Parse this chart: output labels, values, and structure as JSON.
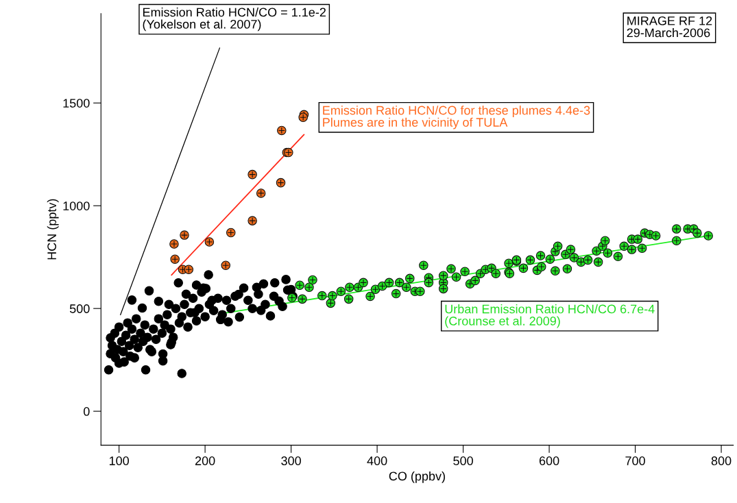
{
  "chart_data": {
    "type": "scatter",
    "xlabel": "CO (ppbv)",
    "ylabel": "HCN (pptv)",
    "xlim": [
      79,
      814
    ],
    "ylim": [
      -165,
      1935
    ],
    "xticks": [
      100,
      200,
      300,
      400,
      500,
      600,
      700,
      800
    ],
    "yticks": [
      0,
      500,
      1000,
      1500
    ],
    "grid": false,
    "annotations": [
      "Emission Ratio HCN/CO = 1.1e-2\n(Yokelson et al. 2007)",
      "MIRAGE RF 12\n29-March-2006",
      "Emission Ratio HCN/CO for these plumes 4.4e-3\nPlumes are in the vicinity of TULA",
      "Urban Emission Ratio HCN/CO 6.7e-4\n(Crounse et al. 2009)"
    ],
    "series": [
      {
        "marker": "circle",
        "color": "#000000",
        "x": [
          88,
          173,
          131,
          151,
          160,
          204,
          135,
          115,
          169,
          240,
          276,
          294,
          281,
          218,
          227,
          127,
          146,
          100,
          90,
          90,
          113,
          190,
          201,
          239,
          260,
          265,
          286,
          300,
          151,
          161,
          92,
          95,
          98,
          100,
          103,
          105,
          108,
          110,
          112,
          115,
          118,
          120,
          122,
          125,
          128,
          130,
          133,
          136,
          140,
          143,
          146,
          150,
          153,
          156,
          160,
          163,
          166,
          170,
          173,
          176,
          180,
          183,
          186,
          190,
          193,
          196,
          200,
          205,
          210,
          215,
          220,
          225,
          230,
          235,
          250,
          255,
          262,
          270,
          280,
          290,
          296,
          302,
          96,
          106,
          118,
          138,
          158,
          178,
          188,
          198,
          208,
          245,
          268
        ],
        "values": [
          201,
          184,
          201,
          245,
          324,
          664,
          586,
          541,
          625,
          458,
          464,
          641,
          625,
          446,
          435,
          502,
          535,
          234,
          280,
          357,
          268,
          614,
          597,
          569,
          603,
          491,
          536,
          592,
          279,
          335,
          320,
          380,
          300,
          410,
          340,
          290,
          370,
          430,
          320,
          400,
          350,
          450,
          310,
          380,
          340,
          420,
          360,
          300,
          400,
          350,
          450,
          380,
          420,
          470,
          400,
          360,
          500,
          430,
          460,
          520,
          410,
          480,
          550,
          440,
          500,
          580,
          460,
          520,
          490,
          550,
          470,
          540,
          500,
          560,
          540,
          500,
          570,
          520,
          560,
          510,
          590,
          560,
          260,
          240,
          260,
          290,
          520,
          570,
          480,
          600,
          540,
          600,
          620
        ]
      },
      {
        "marker": "cross",
        "color": "#e8681a",
        "x": [
          315,
          314,
          289,
          295,
          297,
          255,
          288,
          265,
          255,
          230,
          176,
          164,
          205,
          165,
          224,
          174,
          181
        ],
        "values": [
          1443,
          1430,
          1366,
          1259,
          1259,
          1152,
          1112,
          1061,
          927,
          869,
          857,
          814,
          824,
          740,
          710,
          690,
          690
        ]
      },
      {
        "marker": "cross",
        "color": "#22dd22",
        "x": [
          301,
          310,
          325,
          321,
          313,
          336,
          346,
          348,
          358,
          367,
          368,
          378,
          384,
          392,
          398,
          406,
          414,
          422,
          426,
          434,
          438,
          444,
          450,
          454,
          460,
          460,
          477,
          477,
          477,
          486,
          492,
          502,
          508,
          514,
          520,
          526,
          533,
          538,
          553,
          553,
          562,
          554,
          562,
          570,
          578,
          586,
          591,
          590,
          601,
          607,
          610,
          607,
          619,
          621,
          625,
          629,
          637,
          645,
          655,
          657,
          662,
          665,
          668,
          680,
          687,
          696,
          696,
          703,
          708,
          711,
          717,
          724,
          748,
          748,
          761,
          768,
          772,
          785
        ],
        "values": [
          552,
          613,
          639,
          603,
          546,
          562,
          526,
          562,
          583,
          546,
          603,
          603,
          626,
          559,
          593,
          609,
          626,
          572,
          626,
          603,
          646,
          583,
          583,
          710,
          650,
          626,
          626,
          660,
          596,
          693,
          653,
          680,
          620,
          636,
          670,
          690,
          696,
          670,
          676,
          720,
          730,
          670,
          736,
          696,
          736,
          686,
          703,
          757,
          740,
          777,
          803,
          683,
          763,
          693,
          787,
          747,
          726,
          736,
          780,
          726,
          803,
          830,
          770,
          753,
          803,
          837,
          787,
          837,
          793,
          867,
          860,
          854,
          887,
          830,
          887,
          887,
          867,
          854
        ]
      },
      {
        "type": "line",
        "color": "#000000",
        "x": [
          101.6,
          217
        ],
        "values": [
          469,
          1768
        ]
      },
      {
        "type": "line",
        "color": "#ff2a1a",
        "x": [
          161,
          315
        ],
        "values": [
          663,
          1346
        ]
      },
      {
        "type": "line",
        "color": "#22ee22",
        "x": [
          219,
          785
        ],
        "values": [
          475,
          854
        ]
      }
    ]
  }
}
